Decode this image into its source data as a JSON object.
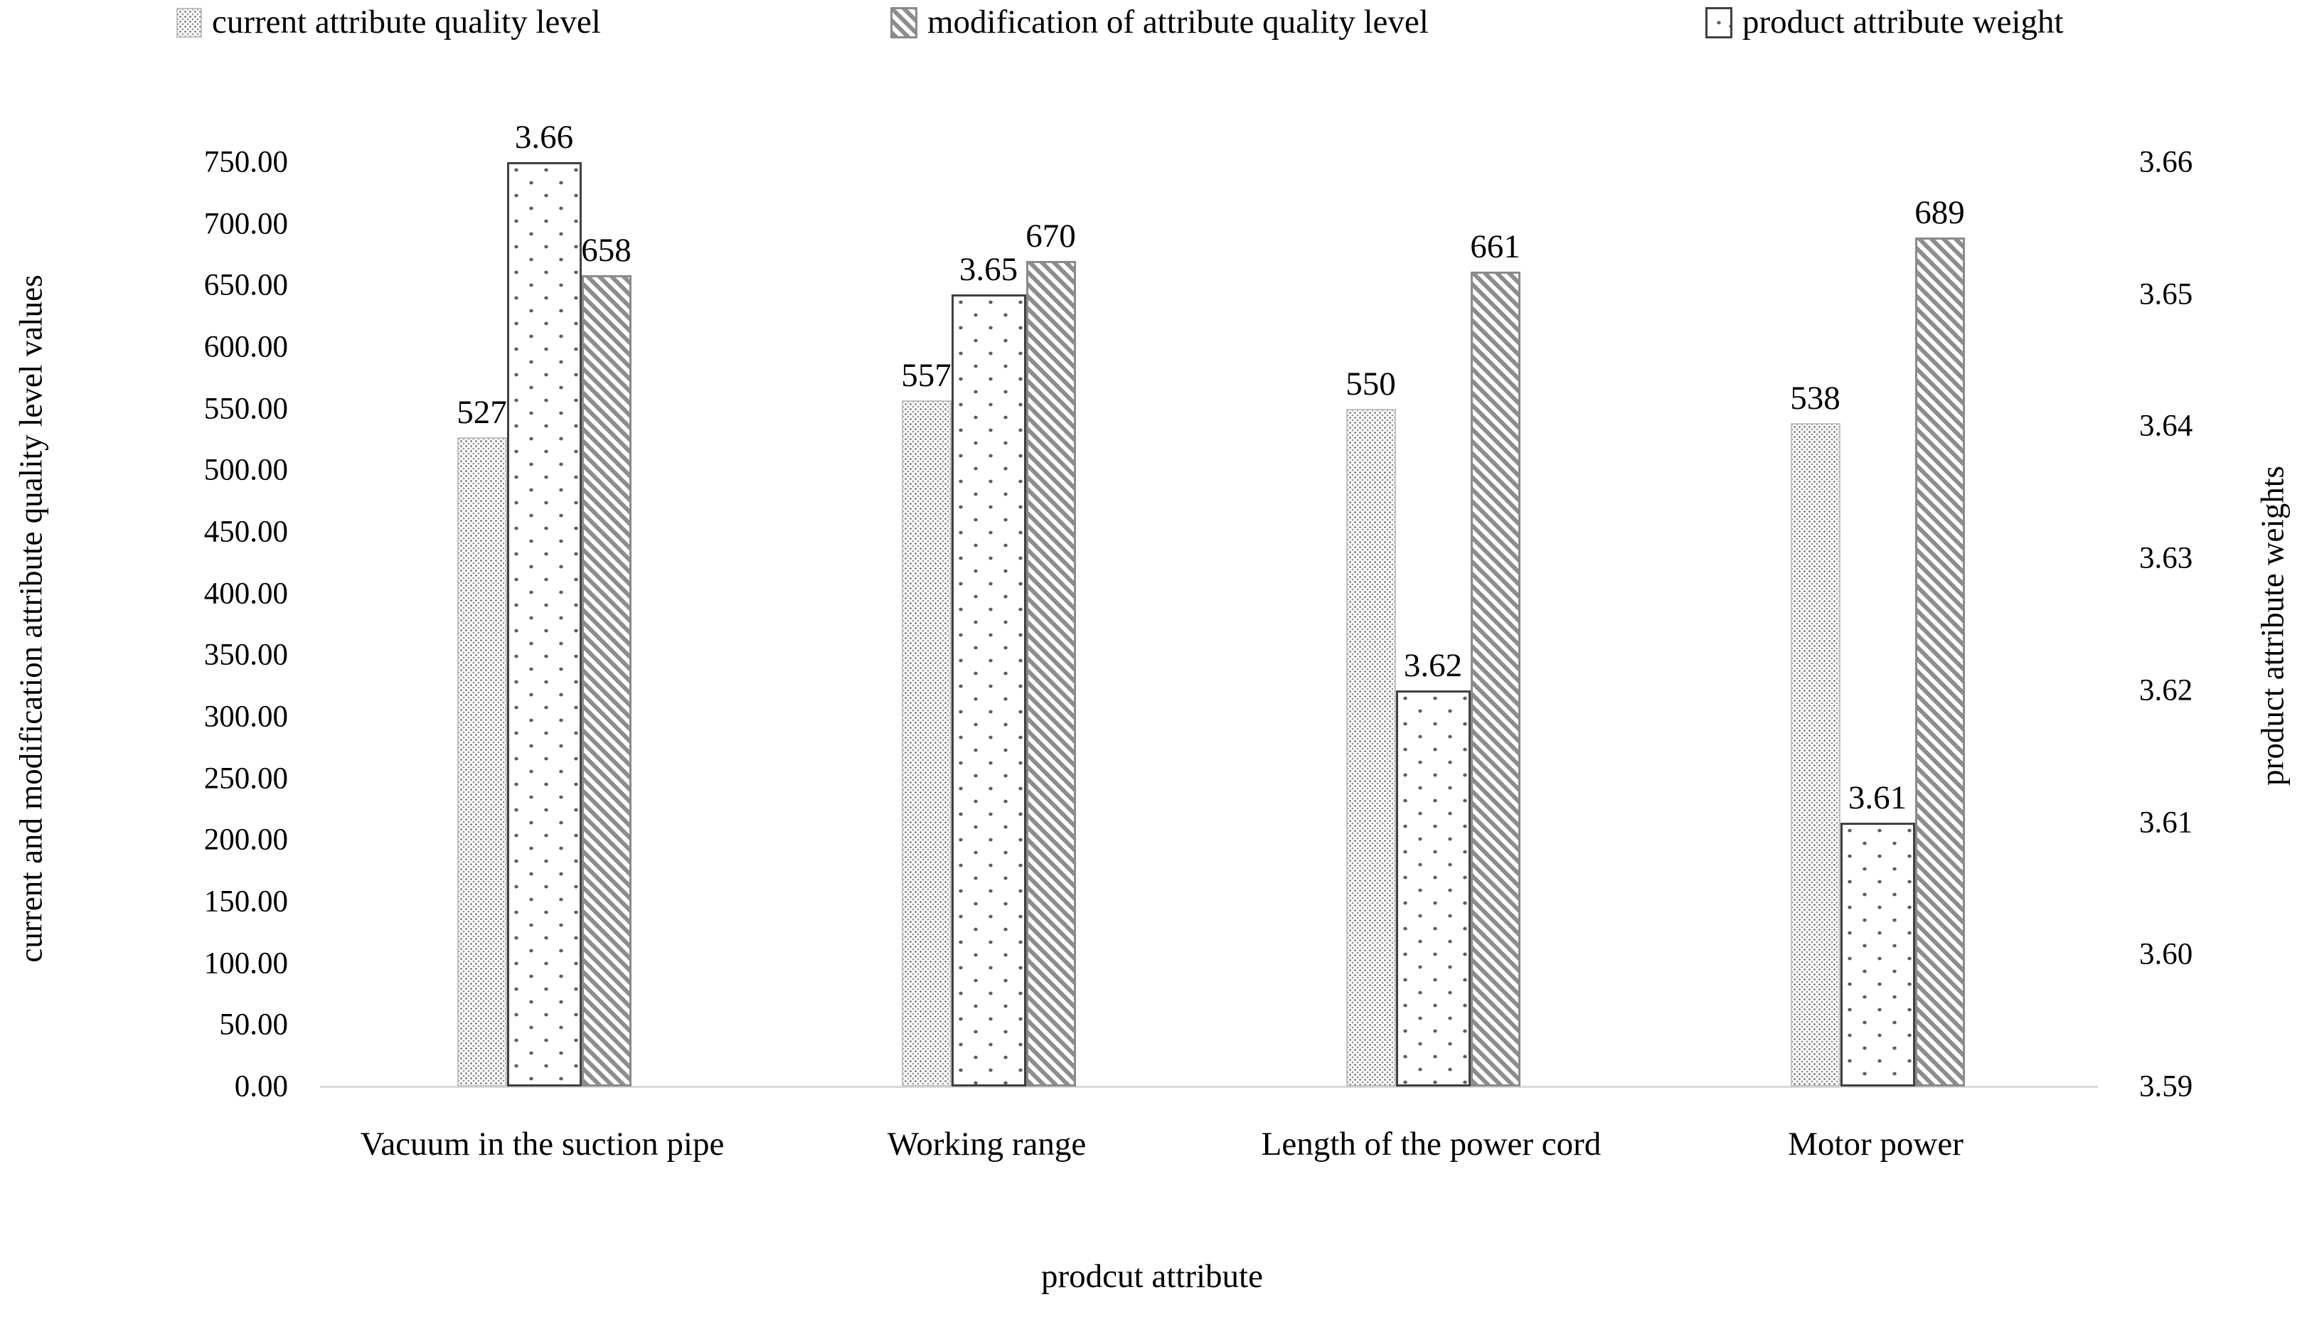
{
  "chart_data": {
    "type": "bar",
    "title": "",
    "grid": false,
    "legend_position": "top",
    "categories": [
      "Vacuum in the suction pipe",
      "Working range",
      "Length of the power cord",
      "Motor power"
    ],
    "legend": [
      {
        "label": "current attribute quality level",
        "pattern": "dense-dots"
      },
      {
        "label": "modification of attribute quality level",
        "pattern": "diagonal-hatch"
      },
      {
        "label": "product attribute weight",
        "pattern": "sparse-dots"
      }
    ],
    "series": [
      {
        "name": "current attribute quality level",
        "axis": "left",
        "pattern": "dense-dots",
        "values": [
          527,
          557,
          550,
          538
        ],
        "labels": [
          "527",
          "557",
          "550",
          "538"
        ]
      },
      {
        "name": "product attribute weight",
        "axis": "right",
        "pattern": "sparse-dots",
        "values": [
          3.66,
          3.65,
          3.62,
          3.61
        ],
        "labels": [
          "3.66",
          "3.65",
          "3.62",
          "3.61"
        ]
      },
      {
        "name": "modification of attribute quality level",
        "axis": "left",
        "pattern": "diagonal-hatch",
        "values": [
          658,
          670,
          661,
          689
        ],
        "labels": [
          "658",
          "670",
          "661",
          "689"
        ]
      }
    ],
    "axes": {
      "left": {
        "label": "current and modification attribute quality level values",
        "min": 0,
        "max": 750,
        "step": 50,
        "ticks": [
          "0.00",
          "50.00",
          "100.00",
          "150.00",
          "200.00",
          "250.00",
          "300.00",
          "350.00",
          "400.00",
          "450.00",
          "500.00",
          "550.00",
          "600.00",
          "650.00",
          "700.00",
          "750.00"
        ]
      },
      "right": {
        "label": "product attribute weights",
        "min": 3.59,
        "max": 3.66,
        "step": 0.01,
        "ticks": [
          "3.59",
          "3.60",
          "3.61",
          "3.62",
          "3.63",
          "3.64",
          "3.65",
          "3.66"
        ]
      },
      "x": {
        "label": "prodcut attribute"
      }
    },
    "colors": {
      "text": "#000000",
      "baseline": "#d9d9d9",
      "pattern_gray": "#8d8d8d",
      "weight_border": "#404040",
      "current_border": "#c2c2c2"
    }
  }
}
